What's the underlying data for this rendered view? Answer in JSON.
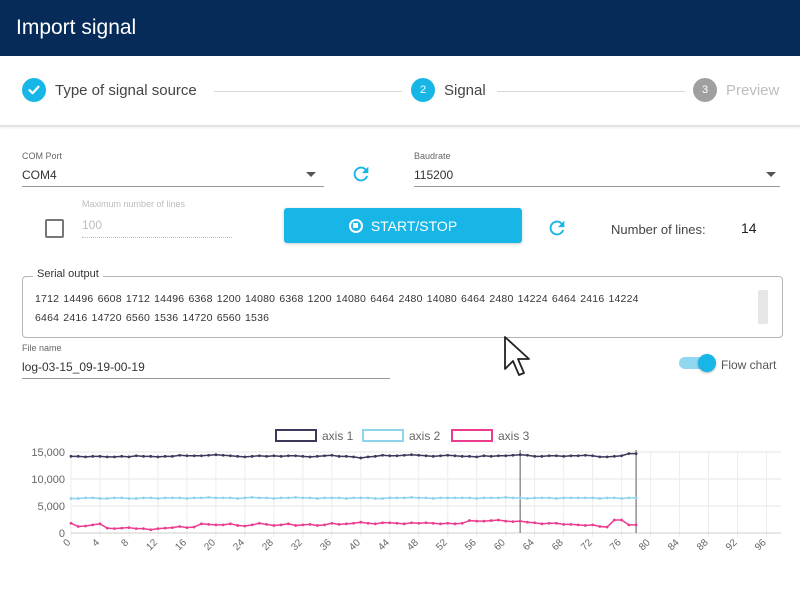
{
  "window": {
    "title": "Import signal"
  },
  "stepper": {
    "steps": [
      {
        "label": "Type of signal source",
        "number": "✓",
        "state": "done"
      },
      {
        "label": "Signal",
        "number": "2",
        "state": "active"
      },
      {
        "label": "Preview",
        "number": "3",
        "state": "todo"
      }
    ]
  },
  "form": {
    "com_port": {
      "label": "COM Port",
      "value": "COM4"
    },
    "baudrate": {
      "label": "Baudrate",
      "value": "115200"
    },
    "max_lines": {
      "label": "Maximum number of lines",
      "value": "100",
      "checked": false
    },
    "start_stop_label": "START/STOP",
    "number_of_lines": {
      "label": "Number of lines:",
      "value": "14"
    },
    "serial_output": {
      "label": "Serial output",
      "lines": [
        "1712 14496 6608 1712 14496 6368 1200 14080 6368 1200 14080 6464 2480 14080 6464 2480 14224 6464 2416 14224",
        "6464 2416 14720 6560 1536 14720 6560 1536"
      ]
    },
    "file_name": {
      "label": "File name",
      "value": "log-03-15_09-19-00-19"
    },
    "flow_chart": {
      "label": "Flow chart",
      "on": true
    }
  },
  "icons": {
    "refresh": "refresh-icon",
    "check": "check-icon",
    "stop": "stop-circle-icon",
    "caret": "chevron-down-icon",
    "cursor": "mouse-cursor-icon"
  },
  "colors": {
    "header_bg": "#072b58",
    "accent": "#17b6e6",
    "axis1": "#3b3a5a",
    "axis2": "#8fd3ec",
    "axis3": "#ec3c8f"
  },
  "chart_data": {
    "type": "line",
    "legend_position": "top",
    "grid": true,
    "xlim": [
      0,
      98
    ],
    "ylim": [
      0,
      15000
    ],
    "x_ticks": [
      0,
      4,
      8,
      12,
      16,
      20,
      24,
      28,
      32,
      36,
      40,
      44,
      48,
      52,
      56,
      60,
      64,
      68,
      72,
      76,
      80,
      84,
      88,
      92,
      96
    ],
    "y_ticks": [
      {
        "value": 0,
        "label": "0"
      },
      {
        "value": 5000,
        "label": "5,000"
      },
      {
        "value": 10000,
        "label": "10,000"
      },
      {
        "value": 15000,
        "label": "15,000"
      }
    ],
    "marker_lines_x": [
      62,
      78
    ],
    "series": [
      {
        "name": "axis 1",
        "color": "#3b3a5a",
        "values": [
          14200,
          14200,
          14100,
          14200,
          14200,
          14100,
          14100,
          14200,
          14100,
          14300,
          14200,
          14200,
          14100,
          14200,
          14200,
          14400,
          14300,
          14300,
          14300,
          14400,
          14500,
          14400,
          14300,
          14200,
          14100,
          14200,
          14300,
          14200,
          14300,
          14200,
          14300,
          14300,
          14200,
          14100,
          14200,
          14300,
          14400,
          14200,
          14200,
          14100,
          13900,
          14100,
          14200,
          14400,
          14300,
          14300,
          14400,
          14500,
          14400,
          14300,
          14200,
          14300,
          14400,
          14300,
          14200,
          14200,
          14100,
          14300,
          14200,
          14300,
          14300,
          14400,
          14500,
          14400,
          14200,
          14200,
          14300,
          14300,
          14200,
          14300,
          14300,
          14400,
          14300,
          14100,
          14100,
          14200,
          14300,
          14700,
          14700
        ]
      },
      {
        "name": "axis 2",
        "color": "#8fd3ec",
        "values": [
          6400,
          6400,
          6500,
          6500,
          6400,
          6400,
          6500,
          6500,
          6400,
          6400,
          6500,
          6500,
          6400,
          6500,
          6500,
          6500,
          6400,
          6500,
          6500,
          6600,
          6500,
          6500,
          6500,
          6400,
          6500,
          6600,
          6500,
          6500,
          6400,
          6500,
          6500,
          6600,
          6500,
          6500,
          6400,
          6500,
          6500,
          6500,
          6400,
          6500,
          6500,
          6500,
          6400,
          6400,
          6500,
          6500,
          6500,
          6600,
          6500,
          6500,
          6400,
          6500,
          6500,
          6500,
          6500,
          6500,
          6400,
          6500,
          6500,
          6500,
          6600,
          6500,
          6500,
          6400,
          6500,
          6500,
          6500,
          6400,
          6500,
          6500,
          6500,
          6500,
          6500,
          6400,
          6500,
          6500,
          6400,
          6500,
          6500
        ]
      },
      {
        "name": "axis 3",
        "color": "#ec3c8f",
        "values": [
          1800,
          1200,
          1300,
          1500,
          1700,
          900,
          800,
          900,
          1000,
          800,
          800,
          600,
          800,
          900,
          1000,
          1200,
          1000,
          1100,
          1700,
          1600,
          1500,
          1500,
          1700,
          1400,
          1300,
          1500,
          1800,
          1600,
          1400,
          1500,
          1700,
          1400,
          1500,
          1600,
          1400,
          1500,
          1800,
          1600,
          1700,
          1800,
          2000,
          1800,
          1700,
          1900,
          1900,
          1800,
          1700,
          1900,
          1800,
          1900,
          1800,
          1700,
          1800,
          1700,
          1800,
          2300,
          2200,
          2200,
          2300,
          2400,
          2200,
          2100,
          2200,
          2000,
          1900,
          1700,
          1800,
          1800,
          1600,
          1600,
          1500,
          1400,
          1500,
          1200,
          1100,
          2400,
          2400,
          1500,
          1500
        ]
      }
    ]
  }
}
